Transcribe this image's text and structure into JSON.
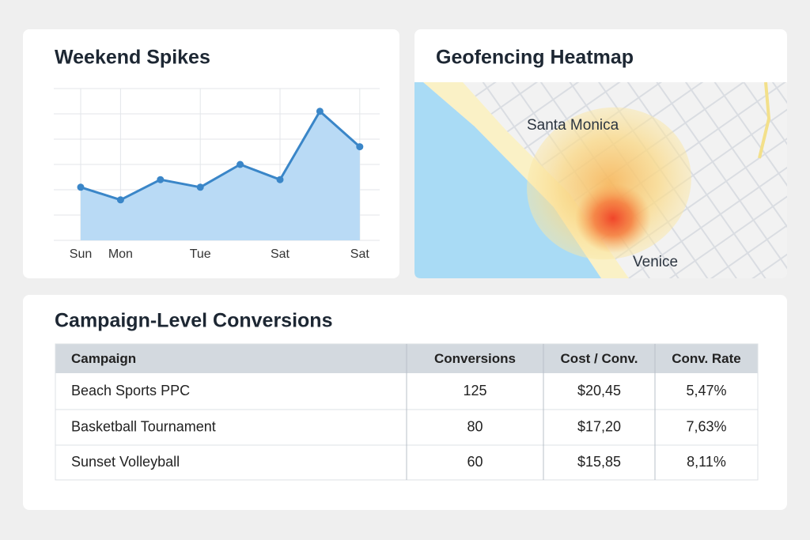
{
  "chart_data": {
    "type": "line",
    "title": "Weekend Spikes",
    "categories": [
      "Sun",
      "Mon",
      null,
      "Tue",
      null,
      "Sat",
      null,
      "Sat"
    ],
    "values": [
      2.1,
      1.6,
      2.4,
      2.1,
      3.0,
      2.4,
      5.1,
      3.7
    ],
    "color": "#3a86c8",
    "fill": "#b9daf5",
    "ylim": [
      0,
      6
    ],
    "yticks": [
      0,
      1,
      2,
      3,
      4,
      5,
      6
    ],
    "grid": true
  },
  "map": {
    "title": "Geofencing Heatmap",
    "labels": [
      "Santa Monica",
      "Venice"
    ]
  },
  "table": {
    "title": "Campaign-Level Conversions",
    "columns": [
      "Campaign",
      "Conversions",
      "Cost / Conv.",
      "Conv. Rate"
    ],
    "rows": [
      [
        "Beach Sports PPC",
        "125",
        "$20,45",
        "5,47%"
      ],
      [
        "Basketball Tournament",
        "80",
        "$17,20",
        "7,63%"
      ],
      [
        "Sunset Volleyball",
        "60",
        "$15,85",
        "8,11%"
      ]
    ]
  }
}
